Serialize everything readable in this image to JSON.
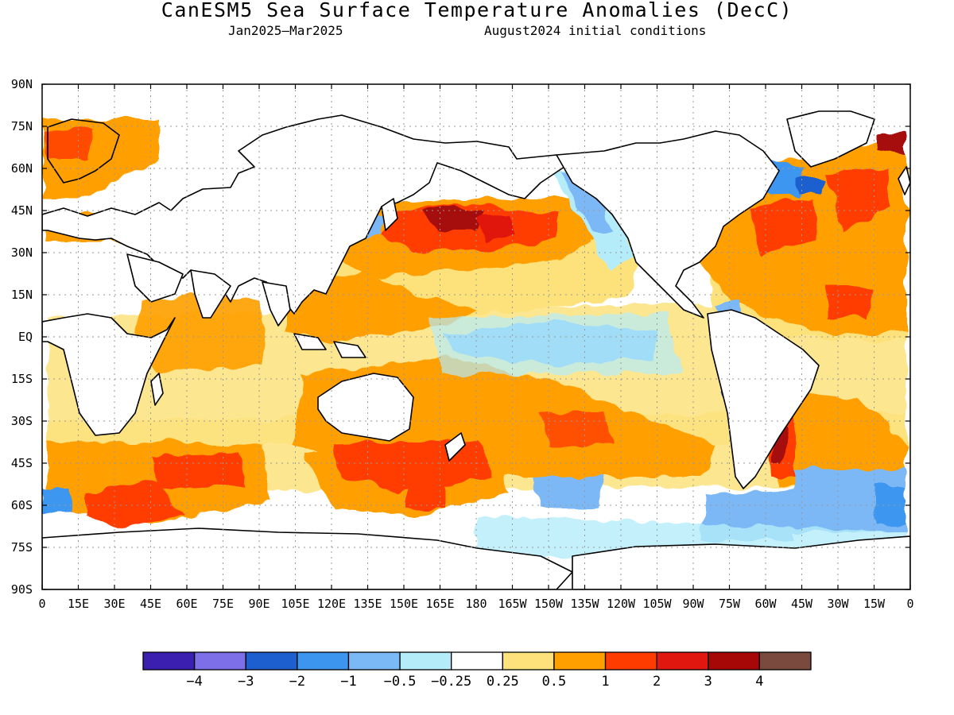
{
  "title": "CanESM5 Sea Surface Temperature Anomalies (DecC)",
  "subtitle_left": "Jan2025–Mar2025",
  "subtitle_right": "August2024 initial conditions",
  "chart_data": {
    "type": "heatmap",
    "projection": "equirectangular",
    "variable": "Sea Surface Temperature Anomalies",
    "units": "DecC",
    "lon_range": [
      0,
      360
    ],
    "lat_range": [
      -90,
      90
    ],
    "grid": "dotted",
    "lat_ticks": [
      "90N",
      "75N",
      "60N",
      "45N",
      "30N",
      "15N",
      "EQ",
      "15S",
      "30S",
      "45S",
      "60S",
      "75S",
      "90S"
    ],
    "lon_ticks": [
      "0",
      "15E",
      "30E",
      "45E",
      "60E",
      "75E",
      "90E",
      "105E",
      "120E",
      "135E",
      "150E",
      "165E",
      "180",
      "165W",
      "150W",
      "135W",
      "120W",
      "105W",
      "90W",
      "75W",
      "60W",
      "45W",
      "30W",
      "15W",
      "0"
    ],
    "colorbar": {
      "levels": [
        "−4",
        "−3",
        "−2",
        "−1",
        "−0.5",
        "−0.25",
        "0.25",
        "0.5",
        "1",
        "2",
        "3",
        "4"
      ],
      "colors": [
        "#3a1fb0",
        "#7d6fe8",
        "#1e5fcf",
        "#3c96f0",
        "#7bb8f6",
        "#b4ecfa",
        "#ffffff",
        "#fde27c",
        "#ff9f00",
        "#ff3c00",
        "#e0170f",
        "#a60808",
        "#7a4a3e"
      ]
    },
    "features": [
      {
        "region": "North Pacific (~35-50N, 150E-150W)",
        "anomaly_range": "2 to 3"
      },
      {
        "region": "Equatorial central-east Pacific",
        "anomaly_range": "-0.5 to -1"
      },
      {
        "region": "North Atlantic (~20-60N)",
        "anomaly_range": "1 to 2"
      },
      {
        "region": "Labrador Sea / NW Atlantic shelf",
        "anomaly_range": "-1 to -2"
      },
      {
        "region": "Southern Ocean Indian sector (~45-60S)",
        "anomaly_range": "1 to 2"
      },
      {
        "region": "Tasman Sea / south of Australia",
        "anomaly_range": "1 to 2"
      },
      {
        "region": "Arctic north of Europe",
        "anomaly_range": "1 to 3"
      },
      {
        "region": "South Atlantic / Drake Passage (~55-65S)",
        "anomaly_range": "-0.5 to -1"
      },
      {
        "region": "Pacific coast of South America",
        "anomaly_range": "-0.5 to -2"
      },
      {
        "region": "Brazil-Malvinas confluence",
        "anomaly_range": "2 to 3"
      }
    ]
  }
}
